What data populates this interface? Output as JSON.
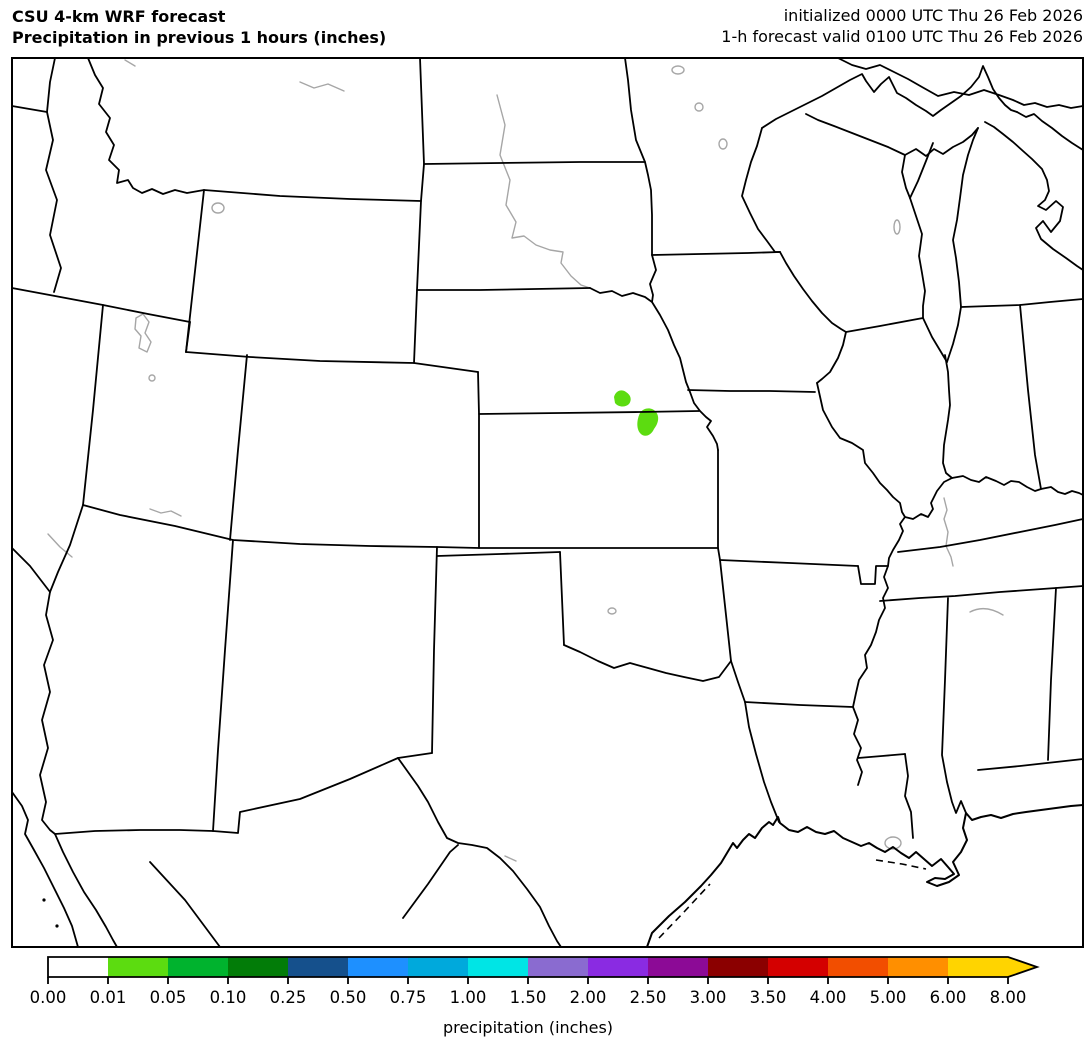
{
  "header": {
    "title_line1": "CSU 4-km WRF forecast",
    "title_line2": "Precipitation in previous 1 hours (inches)",
    "init_line": "initialized 0000 UTC Thu 26 Feb 2026",
    "valid_line": "1-h forecast valid 0100 UTC Thu 26 Feb 2026"
  },
  "chart_data": {
    "type": "map",
    "title": "CSU 4-km WRF forecast — Precipitation in previous 1 hours (inches)",
    "region": "Central United States (Rockies to Great Lakes, Gulf Coast)",
    "projection_note": "state borders black, rivers/lakes gray",
    "colorbar": {
      "label": "precipitation (inches)",
      "boundaries": [
        "0.00",
        "0.01",
        "0.05",
        "0.10",
        "0.25",
        "0.50",
        "0.75",
        "1.00",
        "1.50",
        "2.00",
        "2.50",
        "3.00",
        "3.50",
        "4.00",
        "5.00",
        "6.00",
        "8.00"
      ],
      "colors": [
        "#ffffff",
        "#5cdc10",
        "#00b32e",
        "#027c08",
        "#15508c",
        "#1e90ff",
        "#00a9dc",
        "#00e5e5",
        "#8a6bd0",
        "#8a2be2",
        "#8c0a96",
        "#8b0000",
        "#d40000",
        "#f24e00",
        "#ff8f00",
        "#ffd400"
      ],
      "extend_arrow": true,
      "arrow_color": "#ffd400",
      "outline_color": "#000000"
    },
    "precip_areas": [
      {
        "location": "south-central Nebraska",
        "value_range_inches": "0.01–0.05",
        "color": "#5cdc10"
      },
      {
        "location": "Nebraska–Kansas border, south-central",
        "value_range_inches": "0.01–0.05",
        "color": "#5cdc10"
      }
    ]
  }
}
